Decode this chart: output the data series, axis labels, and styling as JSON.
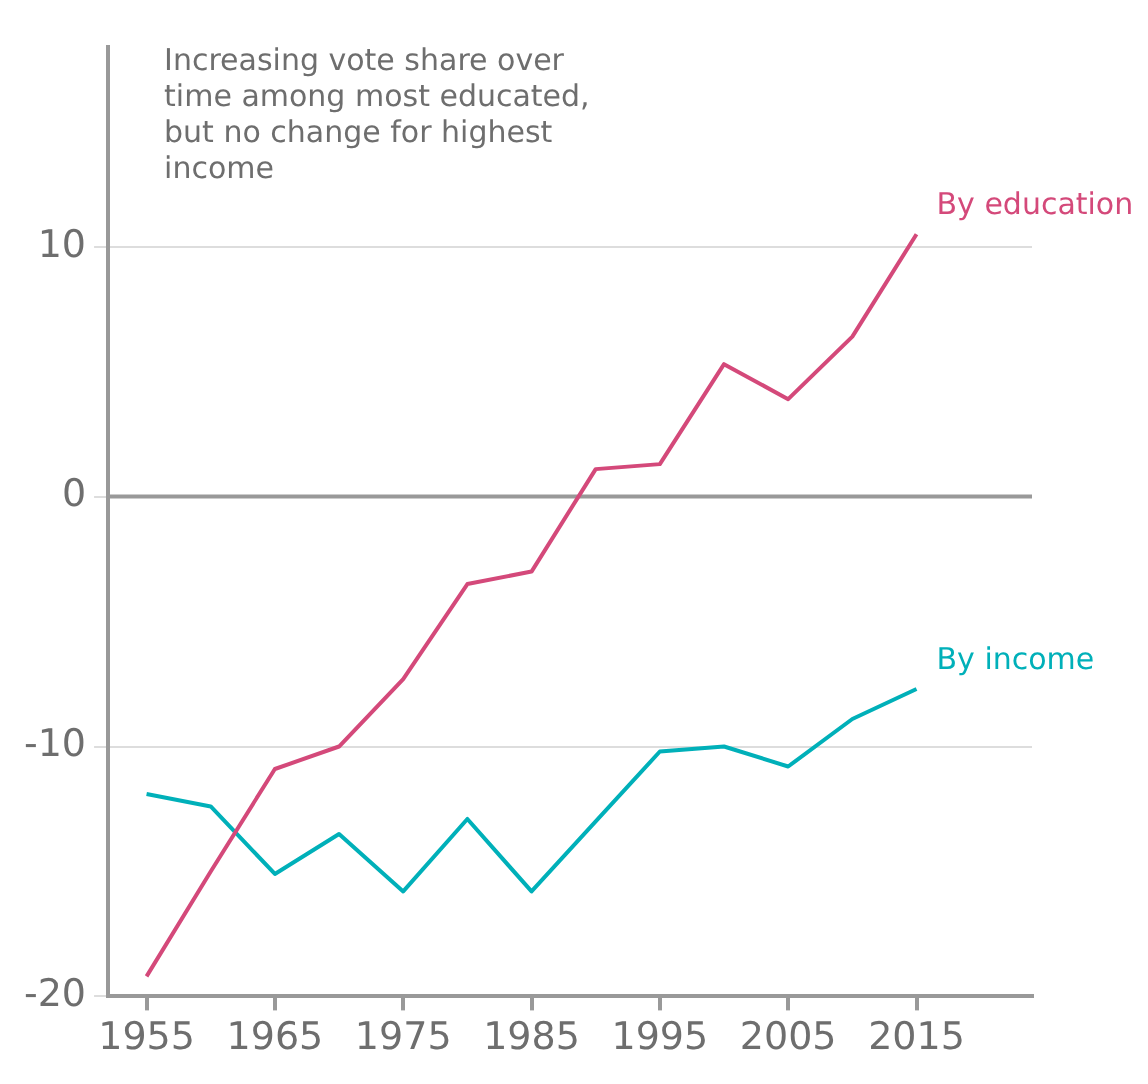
{
  "chart_data": {
    "type": "line",
    "x": [
      1955,
      1960,
      1965,
      1970,
      1975,
      1980,
      1985,
      1990,
      1995,
      2000,
      2005,
      2010,
      2015
    ],
    "series": [
      {
        "name": "By education",
        "color": "#d4497a",
        "values": [
          -19.2,
          -15.0,
          -10.9,
          -10.0,
          -7.3,
          -3.5,
          -3.0,
          1.1,
          1.3,
          5.3,
          3.9,
          6.4,
          10.5
        ]
      },
      {
        "name": "By income",
        "color": "#00b0b9",
        "values": [
          -11.9,
          -12.4,
          -15.1,
          -13.5,
          -15.8,
          -12.9,
          -15.8,
          -13.0,
          -10.2,
          -10.0,
          -10.8,
          -8.9,
          -7.7
        ]
      }
    ],
    "xlim": [
      1952,
      2024
    ],
    "xticks": [
      1955,
      1965,
      1975,
      1985,
      1995,
      2005,
      2015
    ],
    "ylim": [
      -20,
      18
    ],
    "yticks": [
      -20,
      -10,
      0,
      10
    ],
    "grid": "y",
    "legend": false,
    "marker": "none",
    "line_style": "solid",
    "ref_lines": [
      {
        "axis": "y",
        "value": 0,
        "color": "#999999"
      }
    ],
    "annotations": [
      "Increasing vote share over time among most educated, but no change for highest income"
    ]
  }
}
